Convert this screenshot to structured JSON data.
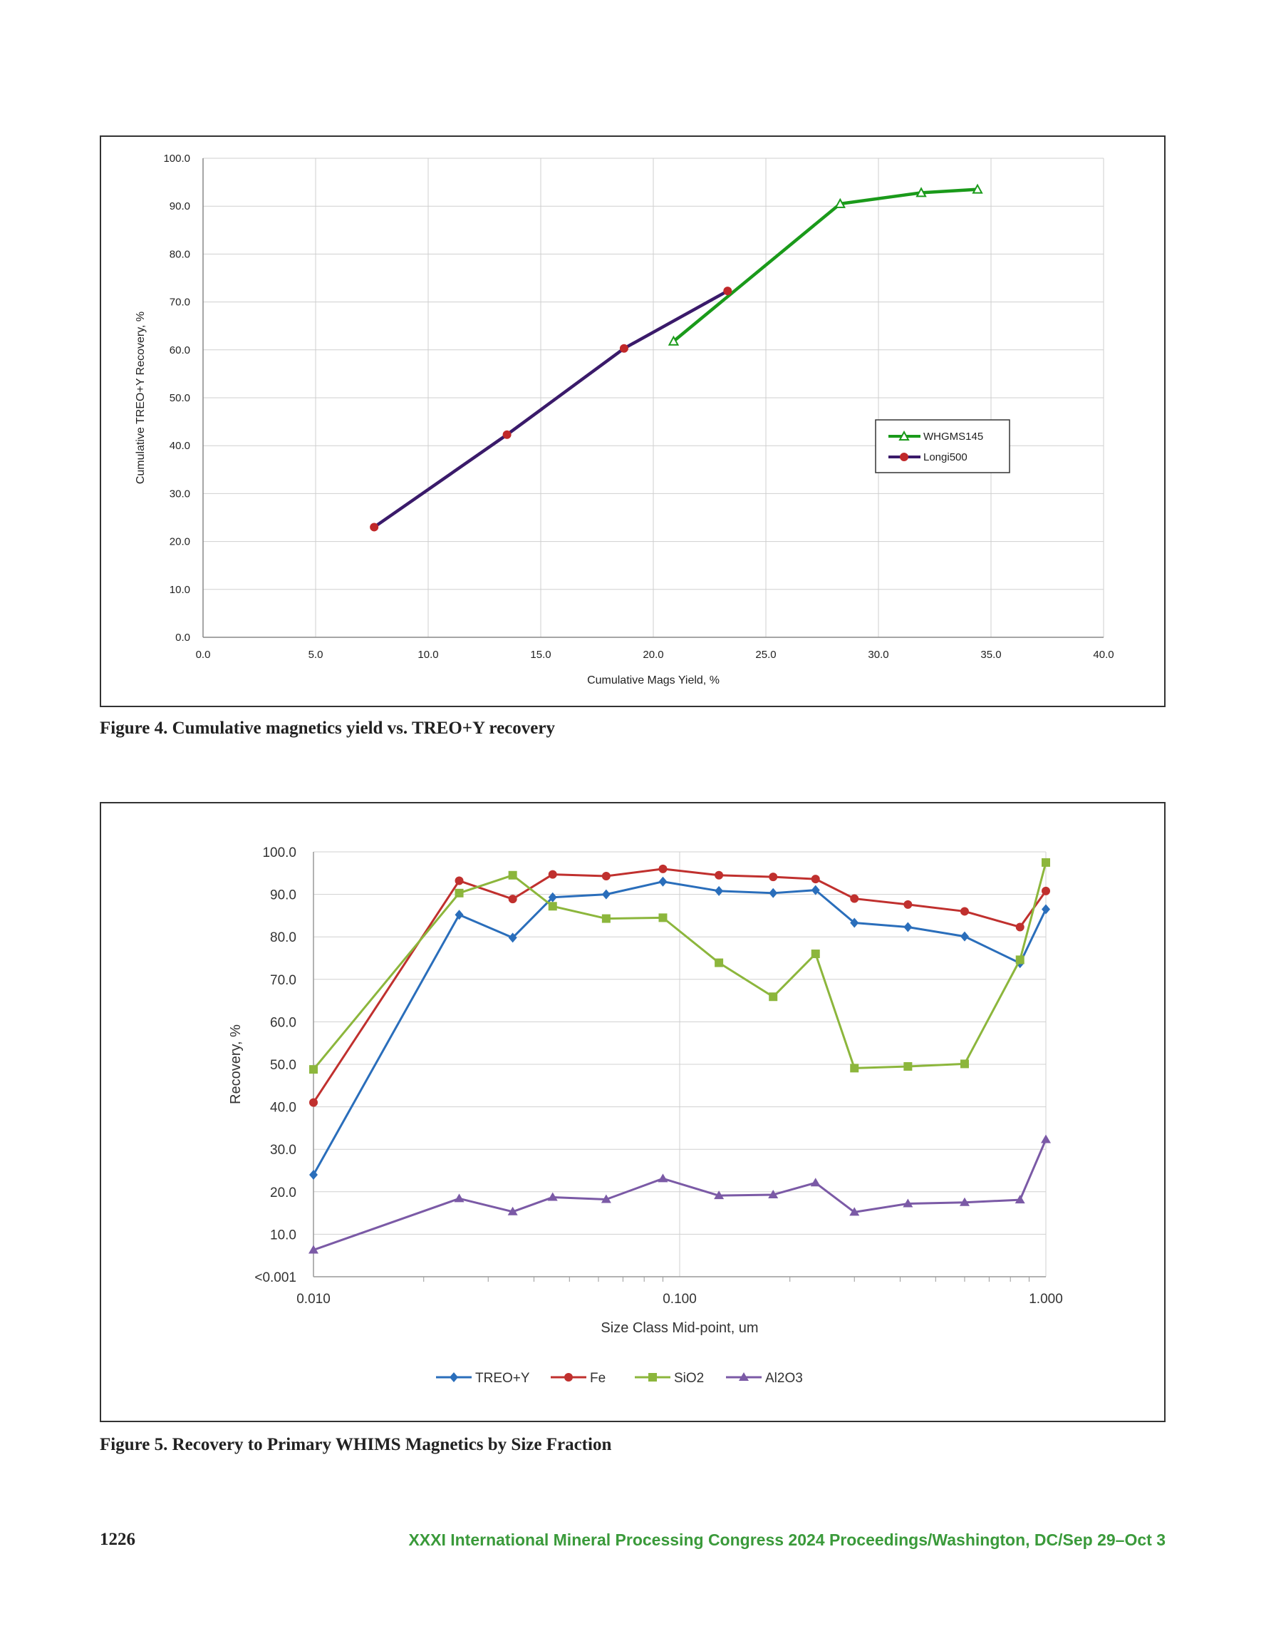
{
  "figure4": {
    "caption": "Figure 4. Cumulative magnetics yield vs. TREO+Y recovery",
    "chart_data": {
      "type": "line",
      "title": "",
      "xlabel": "Cumulative Mags Yield, %",
      "ylabel": "Cumulative TREO+Y Recovery, %",
      "xlim": [
        0,
        40
      ],
      "ylim": [
        0,
        100
      ],
      "x_ticks": [
        "0.0",
        "5.0",
        "10.0",
        "15.0",
        "20.0",
        "25.0",
        "30.0",
        "35.0",
        "40.0"
      ],
      "y_ticks": [
        "0.0",
        "10.0",
        "20.0",
        "30.0",
        "40.0",
        "50.0",
        "60.0",
        "70.0",
        "80.0",
        "90.0",
        "100.0"
      ],
      "grid": true,
      "legend_position": "right-middle",
      "series": [
        {
          "name": "WHGMS145",
          "color": "#1a9a1a",
          "marker": "triangle-open",
          "x": [
            20.9,
            28.3,
            31.9,
            34.4
          ],
          "y": [
            61.8,
            90.5,
            92.8,
            93.5
          ]
        },
        {
          "name": "Longi500",
          "color": "#3a1a6a",
          "marker": "circle",
          "marker_color": "#c0282a",
          "x": [
            7.6,
            13.5,
            18.7,
            23.3
          ],
          "y": [
            23.0,
            42.3,
            60.3,
            72.3
          ]
        }
      ]
    }
  },
  "figure5": {
    "caption": "Figure 5. Recovery to Primary WHIMS Magnetics by Size Fraction",
    "chart_data": {
      "type": "line",
      "title": "",
      "xlabel": "Size Class Mid-point, um",
      "ylabel": "Recovery, %",
      "x_scale": "log",
      "xlim": [
        0.01,
        1.0
      ],
      "ylim": [
        0,
        100
      ],
      "x_ticks": [
        {
          "value": 0.01,
          "label": "0.010"
        },
        {
          "value": 0.1,
          "label": "0.100"
        },
        {
          "value": 1.0,
          "label": "1.000"
        }
      ],
      "y_ticks": [
        "<0.001",
        "10.0",
        "20.0",
        "30.0",
        "40.0",
        "50.0",
        "60.0",
        "70.0",
        "80.0",
        "90.0",
        "100.0"
      ],
      "grid": true,
      "legend_position": "bottom",
      "x": [
        0.01,
        0.025,
        0.035,
        0.045,
        0.063,
        0.09,
        0.128,
        0.18,
        0.235,
        0.3,
        0.42,
        0.6,
        0.85,
        1.0
      ],
      "series": [
        {
          "name": "TREO+Y",
          "color": "#2a6ebb",
          "marker": "diamond",
          "values": [
            24.0,
            85.2,
            79.8,
            89.3,
            90.0,
            93.0,
            90.8,
            90.3,
            91.0,
            83.3,
            82.3,
            80.1,
            73.8,
            86.5
          ]
        },
        {
          "name": "Fe",
          "color": "#c0302e",
          "marker": "circle",
          "values": [
            41.0,
            93.2,
            88.9,
            94.7,
            94.3,
            96.0,
            94.5,
            94.1,
            93.6,
            89.0,
            87.6,
            86.0,
            82.3,
            90.8
          ]
        },
        {
          "name": "SiO2",
          "color": "#8cb63c",
          "marker": "square",
          "values": [
            48.8,
            90.3,
            94.5,
            87.2,
            84.3,
            84.5,
            73.9,
            65.9,
            76.0,
            49.1,
            49.5,
            50.1,
            74.6,
            97.5
          ]
        },
        {
          "name": "Al2O3",
          "color": "#7b5aa6",
          "marker": "triangle",
          "values": [
            6.3,
            18.4,
            15.3,
            18.7,
            18.2,
            23.1,
            19.1,
            19.3,
            22.1,
            15.2,
            17.2,
            17.5,
            18.1,
            32.3
          ]
        }
      ]
    }
  },
  "footer": {
    "page_number": "1226",
    "running_title": "XXXI International Mineral Processing Congress 2024 Proceedings/Washington, DC/Sep 29–Oct 3"
  }
}
